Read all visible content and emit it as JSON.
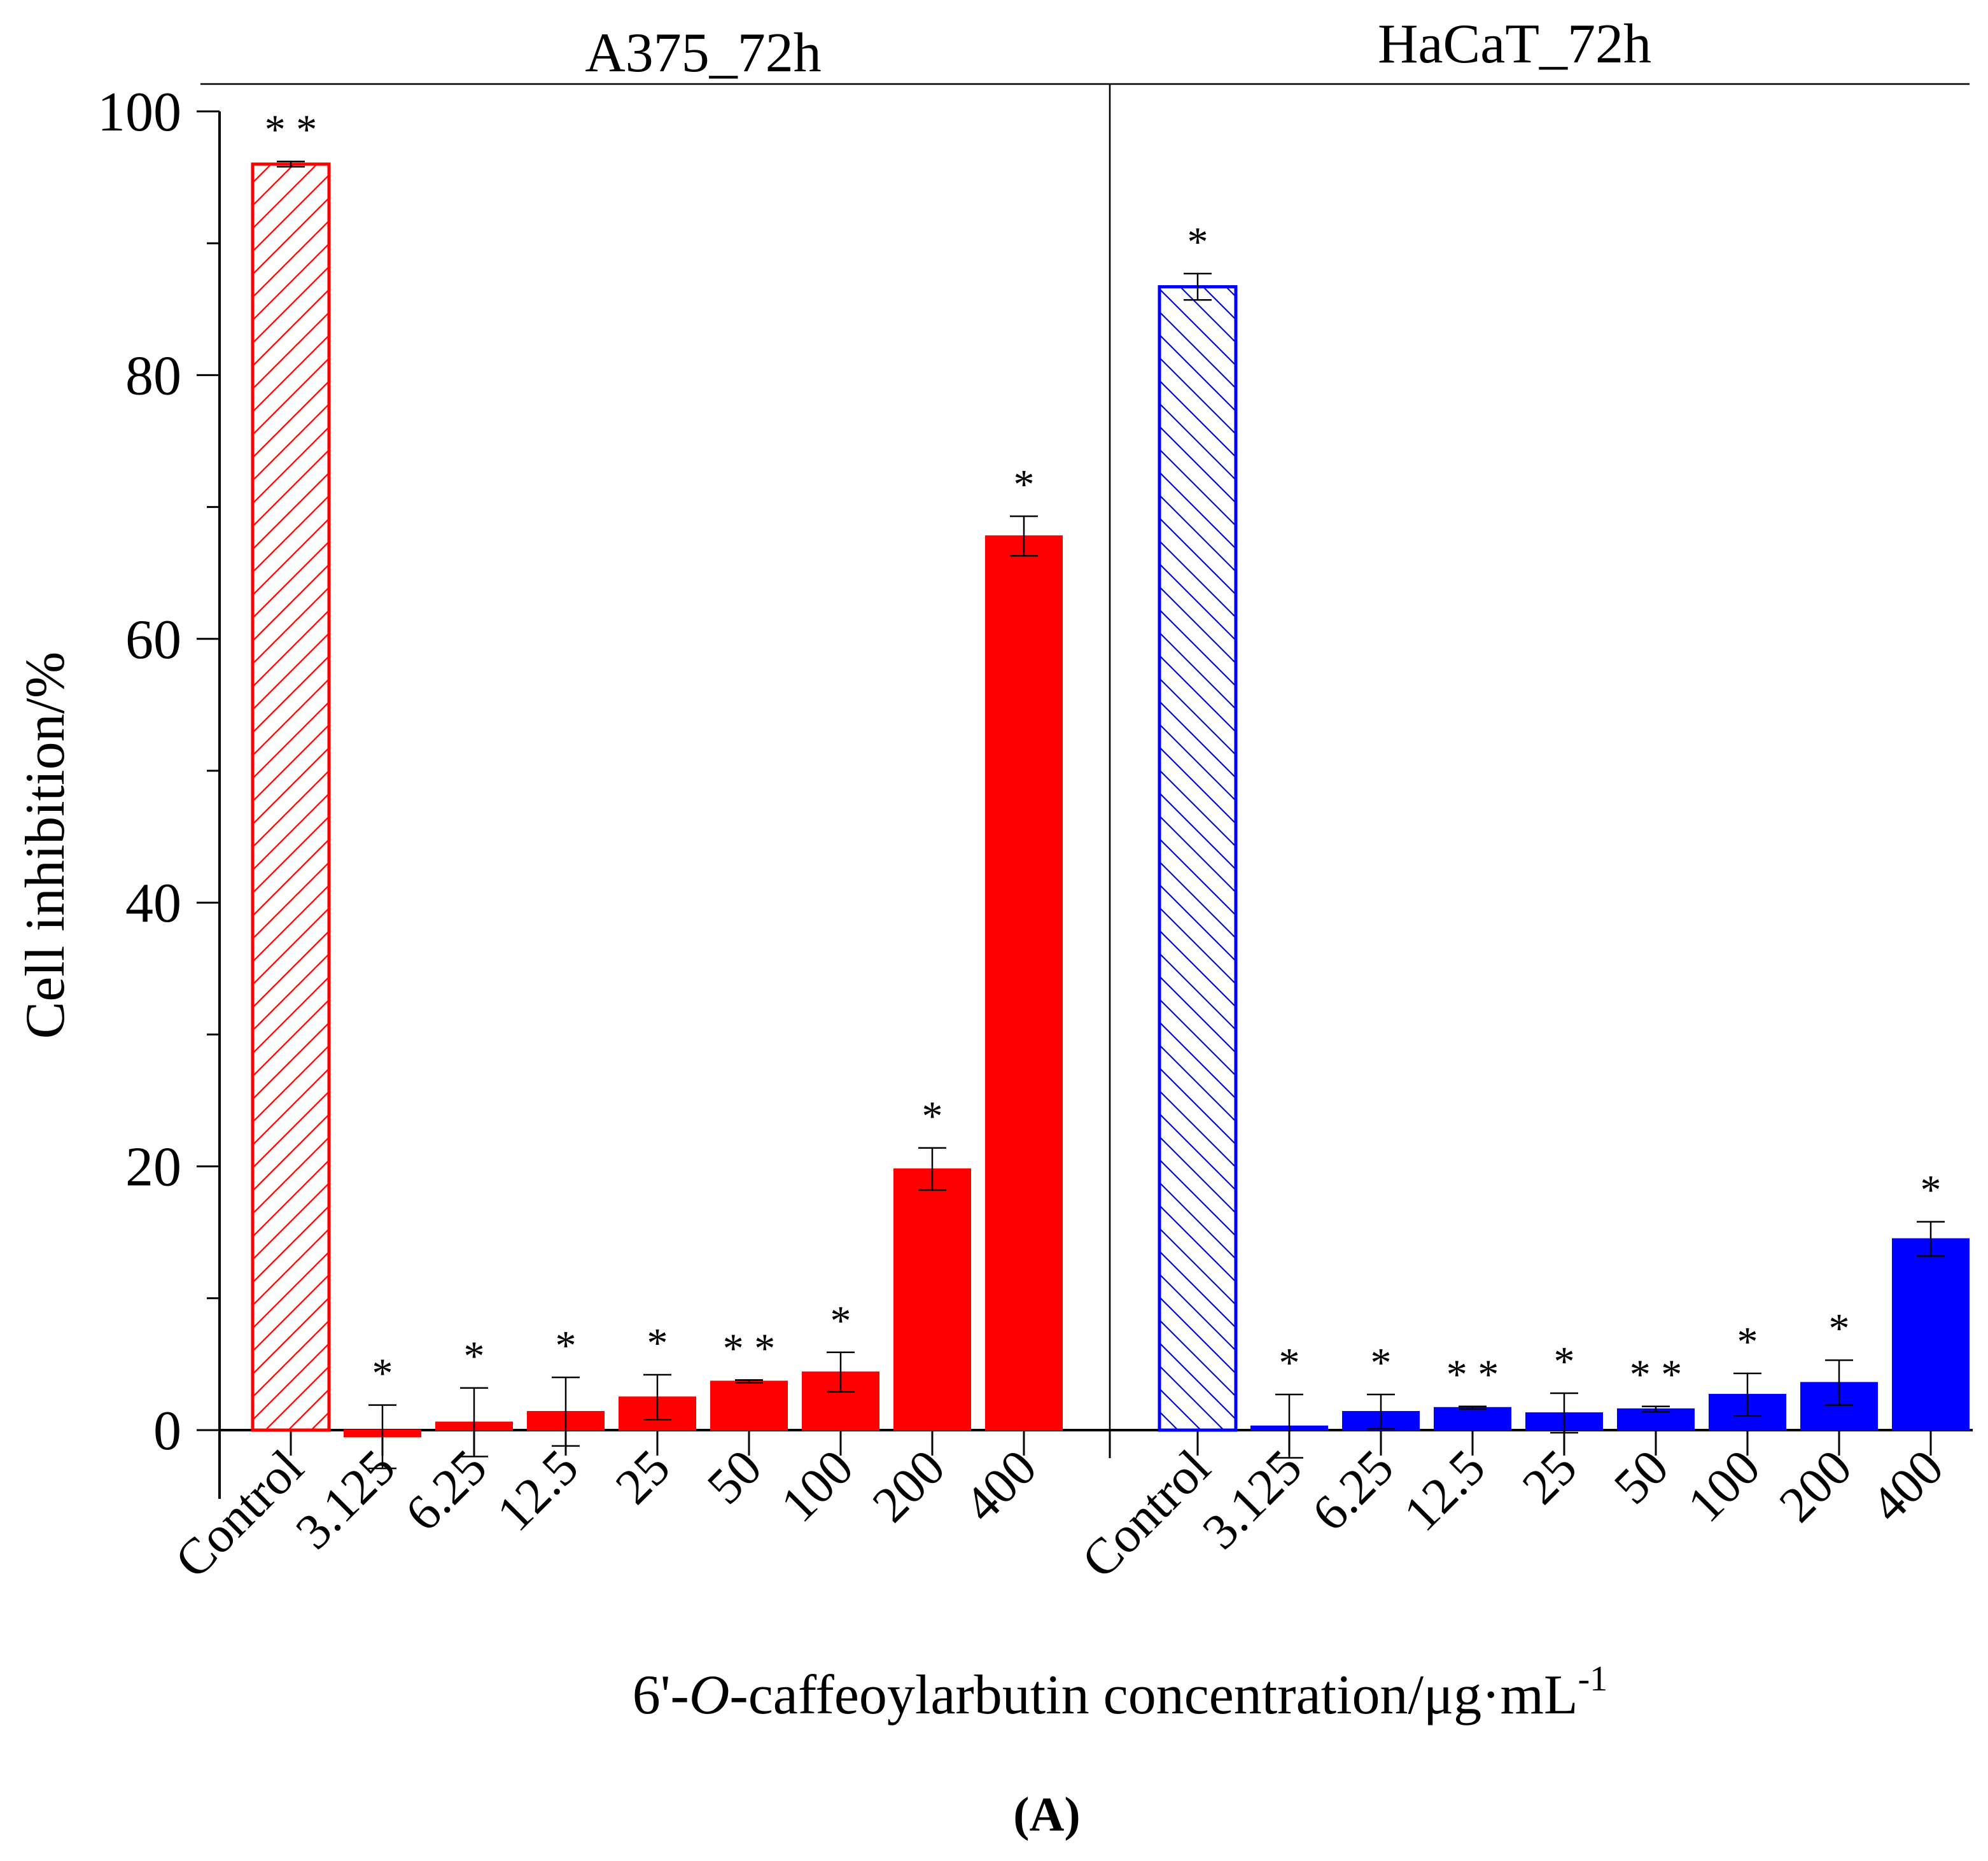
{
  "chart_data": {
    "type": "bar",
    "panel_label": "(A)",
    "ylabel": "Cell inhibition/%",
    "xlabel_parts": [
      "6'-",
      "O",
      "-caffeoylarbutin  concentration/μg·mL",
      "-1"
    ],
    "ylim": [
      0,
      100
    ],
    "yticks": [
      0,
      20,
      40,
      60,
      80,
      100
    ],
    "groups": [
      {
        "name": "A375_72h",
        "color": "#ff0000",
        "categories": [
          "Control",
          "3.125",
          "6.25",
          "12.5",
          "25",
          "50",
          "100",
          "200",
          "400"
        ],
        "values": [
          96.0,
          -0.5,
          0.6,
          1.4,
          2.5,
          3.7,
          4.4,
          19.8,
          67.8
        ],
        "errors": [
          0.2,
          2.4,
          2.6,
          2.6,
          1.7,
          0.1,
          1.5,
          1.6,
          1.5
        ],
        "significance": [
          "**",
          "*",
          "*",
          "*",
          "*",
          "**",
          "*",
          "*",
          "*"
        ],
        "control_style": "hatched-outline"
      },
      {
        "name": "HaCaT_72h",
        "color": "#0000ff",
        "categories": [
          "Control",
          "3.125",
          "6.25",
          "12.5",
          "25",
          "50",
          "100",
          "200",
          "400"
        ],
        "values": [
          86.7,
          0.3,
          1.4,
          1.7,
          1.3,
          1.6,
          2.7,
          3.6,
          14.5
        ],
        "errors": [
          1.0,
          2.4,
          1.3,
          0.1,
          1.5,
          0.2,
          1.6,
          1.7,
          1.3
        ],
        "significance": [
          "*",
          "*",
          "*",
          "**",
          "*",
          "**",
          "*",
          "*",
          "*"
        ],
        "control_style": "hatched-outline"
      }
    ]
  }
}
